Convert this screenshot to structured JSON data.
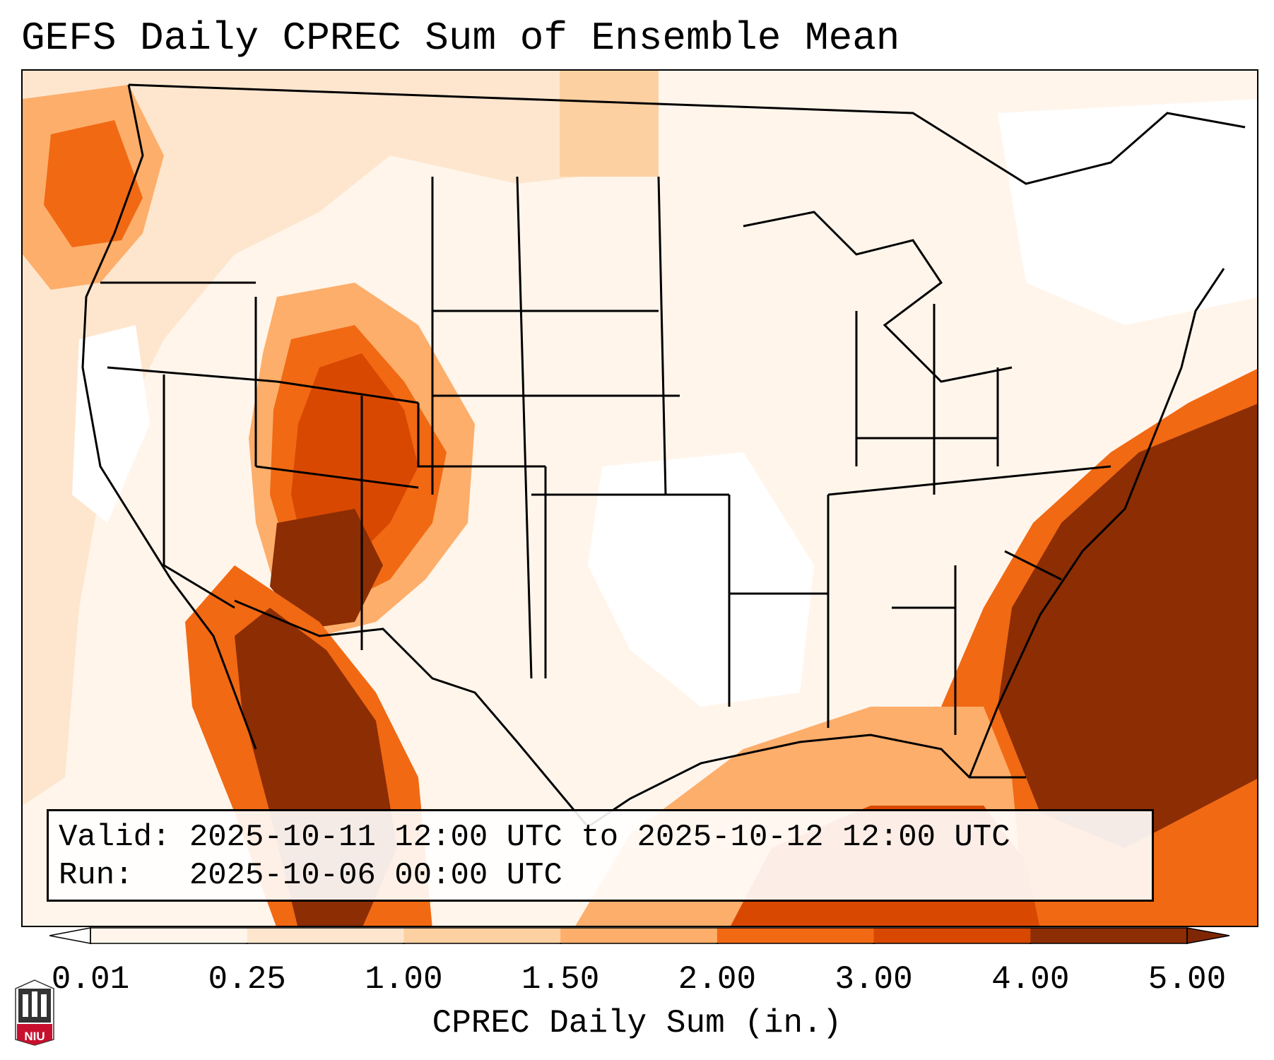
{
  "title": "GEFS Daily CPREC Sum of Ensemble Mean",
  "info": {
    "valid_line": "Valid: 2025-10-11 12:00 UTC to 2025-10-12 12:00 UTC",
    "run_line": "Run:   2025-10-06 00:00 UTC"
  },
  "colorbar": {
    "label": "CPREC Daily Sum (in.)",
    "ticks": [
      "0.01",
      "0.25",
      "1.00",
      "1.50",
      "2.00",
      "3.00",
      "4.00",
      "5.00"
    ],
    "colors": [
      "#fff5eb",
      "#fee6ce",
      "#fdd0a2",
      "#fdae6b",
      "#f16913",
      "#d94801",
      "#8c2d04"
    ],
    "under_color": "#ffffff",
    "over_color": "#7f2704"
  },
  "logo": {
    "text": "NIU",
    "icon": "university-logo-icon"
  }
}
